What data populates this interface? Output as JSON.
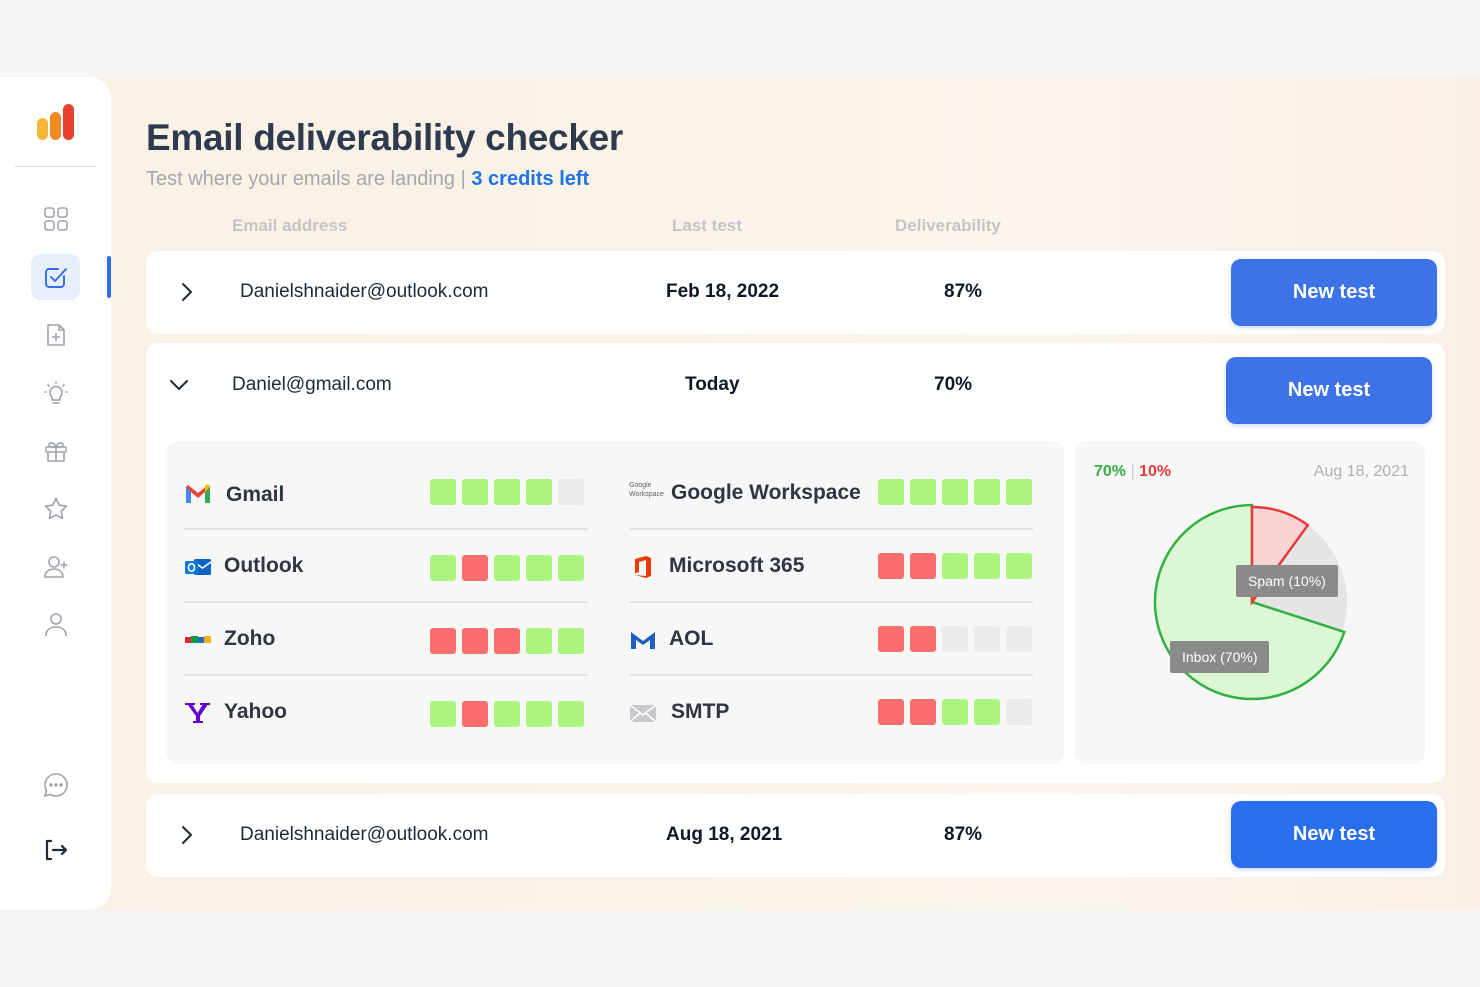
{
  "page": {
    "title": "Email deliverability checker",
    "subtitle": "Test where your emails are landing",
    "separator": "|",
    "credits": "3 credits left"
  },
  "columns": {
    "email": "Email address",
    "last_test": "Last test",
    "deliverability": "Deliverability"
  },
  "sidebar": {
    "items": [
      {
        "icon": "dashboard-grid-icon"
      },
      {
        "icon": "checkbox-icon",
        "active": true
      },
      {
        "icon": "file-add-icon"
      },
      {
        "icon": "lightbulb-icon"
      },
      {
        "icon": "gift-icon"
      },
      {
        "icon": "star-icon"
      },
      {
        "icon": "add-user-icon"
      },
      {
        "icon": "user-icon"
      },
      {
        "icon": "chat-icon"
      },
      {
        "icon": "logout-icon"
      }
    ]
  },
  "rows": [
    {
      "email": "Danielshnaider@outlook.com",
      "last_test": "Feb 18, 2022",
      "deliverability": "87%",
      "button": "New test",
      "expanded": false
    },
    {
      "email": "Daniel@gmail.com",
      "last_test": "Today",
      "deliverability": "70%",
      "button": "New test",
      "expanded": true
    },
    {
      "email": "Danielshnaider@outlook.com",
      "last_test": "Aug 18, 2021",
      "deliverability": "87%",
      "button": "New test",
      "expanded": false
    }
  ],
  "providers": [
    {
      "name": "Gmail",
      "icon": "gmail-icon",
      "squares": [
        "g",
        "g",
        "g",
        "g",
        "e"
      ]
    },
    {
      "name": "Google Workspace",
      "icon": "google-workspace-icon",
      "icon_text": "Google Workspace",
      "squares": [
        "g",
        "g",
        "g",
        "g",
        "g"
      ]
    },
    {
      "name": "Outlook",
      "icon": "outlook-icon",
      "squares": [
        "g",
        "r",
        "g",
        "g",
        "g"
      ]
    },
    {
      "name": "Microsoft 365",
      "icon": "microsoft-365-icon",
      "squares": [
        "r",
        "r",
        "g",
        "g",
        "g"
      ]
    },
    {
      "name": "Zoho",
      "icon": "zoho-icon",
      "squares": [
        "r",
        "r",
        "r",
        "g",
        "g"
      ]
    },
    {
      "name": "AOL",
      "icon": "aol-icon",
      "squares": [
        "r",
        "r",
        "e",
        "e",
        "e"
      ]
    },
    {
      "name": "Yahoo",
      "icon": "yahoo-icon",
      "squares": [
        "g",
        "r",
        "g",
        "g",
        "g"
      ]
    },
    {
      "name": "SMTP",
      "icon": "smtp-envelope-icon",
      "squares": [
        "r",
        "r",
        "g",
        "g",
        "e"
      ]
    }
  ],
  "colors": {
    "green": "#abf47e",
    "red": "#fb6e6e",
    "empty": "#ececec",
    "accent": "#3d73e6"
  },
  "chart_data": {
    "type": "pie",
    "date": "Aug 18, 2021",
    "legend_inbox": "70%",
    "legend_sep": "|",
    "legend_spam": "10%",
    "slices": [
      {
        "label": "Inbox (70%)",
        "value": 70,
        "color": "#34b043"
      },
      {
        "label": "Spam (10%)",
        "value": 10,
        "color": "#e63b3b"
      },
      {
        "label": "",
        "value": 20,
        "color": "#e5e5e5"
      }
    ]
  }
}
